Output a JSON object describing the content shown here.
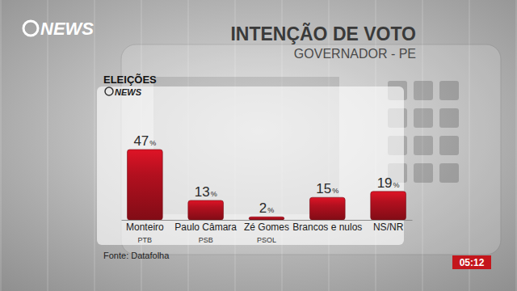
{
  "chart_data": {
    "type": "bar",
    "title": "INTENÇÃO DE VOTO",
    "subtitle": "GOVERNADOR - PE",
    "categories": [
      "Monteiro",
      "Paulo Câmara",
      "Zé Gomes",
      "Brancos e nulos",
      "NS/NR"
    ],
    "parties": [
      "PTB",
      "PSB",
      "PSOL",
      null,
      null
    ],
    "values": [
      47,
      13,
      2,
      15,
      19
    ],
    "value_labels": [
      "47%",
      "13%",
      "2%",
      "15%",
      "19%"
    ],
    "color": "#b3101f",
    "data_labels": true,
    "tick_labels": false,
    "source": "Fonte: Datafolha"
  },
  "broadcast": {
    "logo": "NEWS",
    "section": "ELEIÇÕES",
    "section_logo": "NEWS",
    "clock": "05:12"
  }
}
